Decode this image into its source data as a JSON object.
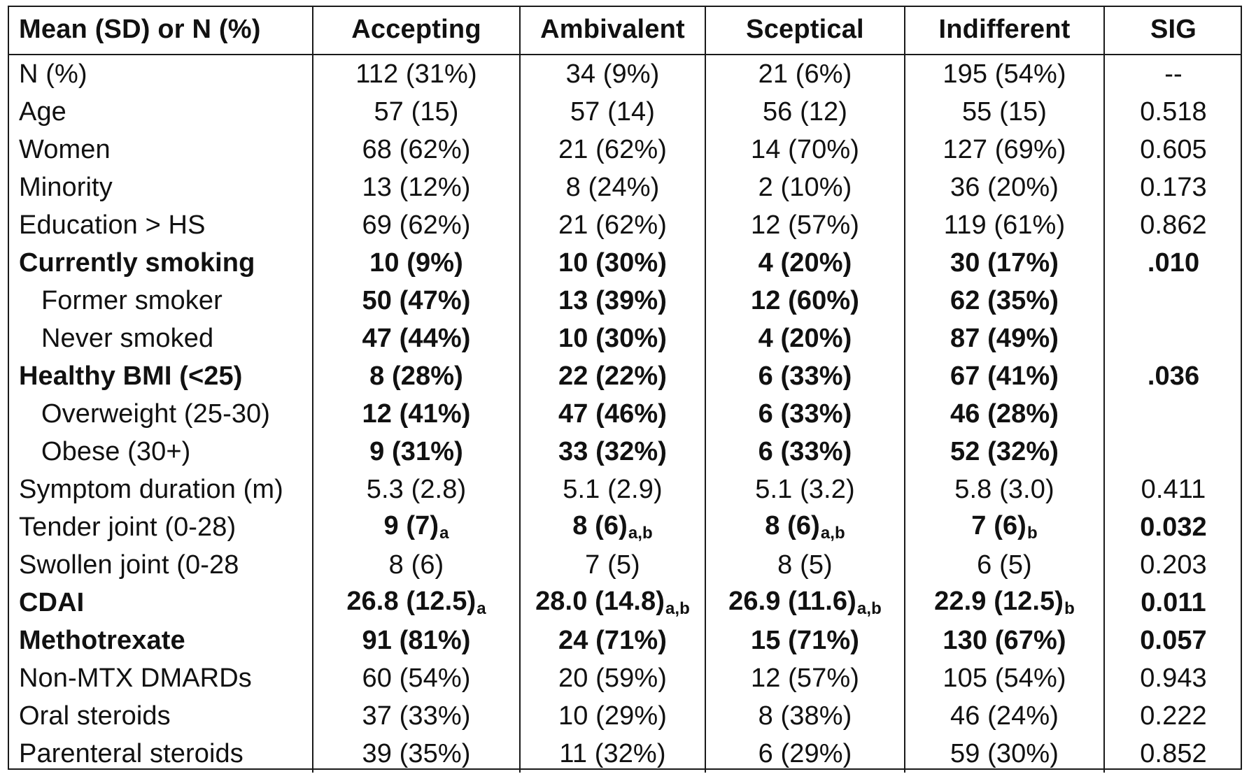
{
  "chart_data": {
    "type": "table",
    "columns": [
      "Mean (SD) or N (%)",
      "Accepting",
      "Ambivalent",
      "Sceptical",
      "Indifferent",
      "SIG"
    ],
    "rows": [
      {
        "label": "N (%)",
        "indent": false,
        "bold_label": false,
        "cells": [
          {
            "text": "112 (31%)",
            "bold": false,
            "sub": ""
          },
          {
            "text": "34 (9%)",
            "bold": false,
            "sub": ""
          },
          {
            "text": "21 (6%)",
            "bold": false,
            "sub": ""
          },
          {
            "text": "195 (54%)",
            "bold": false,
            "sub": ""
          },
          {
            "text": "--",
            "bold": false,
            "sub": ""
          }
        ]
      },
      {
        "label": "Age",
        "indent": false,
        "bold_label": false,
        "cells": [
          {
            "text": "57 (15)",
            "bold": false,
            "sub": ""
          },
          {
            "text": "57 (14)",
            "bold": false,
            "sub": ""
          },
          {
            "text": "56 (12)",
            "bold": false,
            "sub": ""
          },
          {
            "text": "55 (15)",
            "bold": false,
            "sub": ""
          },
          {
            "text": "0.518",
            "bold": false,
            "sub": ""
          }
        ]
      },
      {
        "label": "Women",
        "indent": false,
        "bold_label": false,
        "cells": [
          {
            "text": "68 (62%)",
            "bold": false,
            "sub": ""
          },
          {
            "text": "21 (62%)",
            "bold": false,
            "sub": ""
          },
          {
            "text": "14 (70%)",
            "bold": false,
            "sub": ""
          },
          {
            "text": "127 (69%)",
            "bold": false,
            "sub": ""
          },
          {
            "text": "0.605",
            "bold": false,
            "sub": ""
          }
        ]
      },
      {
        "label": "Minority",
        "indent": false,
        "bold_label": false,
        "cells": [
          {
            "text": "13 (12%)",
            "bold": false,
            "sub": ""
          },
          {
            "text": "8 (24%)",
            "bold": false,
            "sub": ""
          },
          {
            "text": "2 (10%)",
            "bold": false,
            "sub": ""
          },
          {
            "text": "36 (20%)",
            "bold": false,
            "sub": ""
          },
          {
            "text": "0.173",
            "bold": false,
            "sub": ""
          }
        ]
      },
      {
        "label": "Education > HS",
        "indent": false,
        "bold_label": false,
        "cells": [
          {
            "text": "69 (62%)",
            "bold": false,
            "sub": ""
          },
          {
            "text": "21 (62%)",
            "bold": false,
            "sub": ""
          },
          {
            "text": "12 (57%)",
            "bold": false,
            "sub": ""
          },
          {
            "text": "119 (61%)",
            "bold": false,
            "sub": ""
          },
          {
            "text": "0.862",
            "bold": false,
            "sub": ""
          }
        ]
      },
      {
        "label": "Currently smoking",
        "indent": false,
        "bold_label": true,
        "cells": [
          {
            "text": "10 (9%)",
            "bold": true,
            "sub": ""
          },
          {
            "text": "10 (30%)",
            "bold": true,
            "sub": ""
          },
          {
            "text": "4 (20%)",
            "bold": true,
            "sub": ""
          },
          {
            "text": "30 (17%)",
            "bold": true,
            "sub": ""
          },
          {
            "text": ".010",
            "bold": true,
            "sub": ""
          }
        ]
      },
      {
        "label": "Former smoker",
        "indent": true,
        "bold_label": false,
        "cells": [
          {
            "text": "50 (47%)",
            "bold": true,
            "sub": ""
          },
          {
            "text": "13 (39%)",
            "bold": true,
            "sub": ""
          },
          {
            "text": "12 (60%)",
            "bold": true,
            "sub": ""
          },
          {
            "text": "62 (35%)",
            "bold": true,
            "sub": ""
          },
          {
            "text": "",
            "bold": false,
            "sub": ""
          }
        ]
      },
      {
        "label": "Never smoked",
        "indent": true,
        "bold_label": false,
        "cells": [
          {
            "text": "47 (44%)",
            "bold": true,
            "sub": ""
          },
          {
            "text": "10 (30%)",
            "bold": true,
            "sub": ""
          },
          {
            "text": "4 (20%)",
            "bold": true,
            "sub": ""
          },
          {
            "text": "87 (49%)",
            "bold": true,
            "sub": ""
          },
          {
            "text": "",
            "bold": false,
            "sub": ""
          }
        ]
      },
      {
        "label": "Healthy BMI (<25)",
        "indent": false,
        "bold_label": true,
        "cells": [
          {
            "text": "8 (28%)",
            "bold": true,
            "sub": ""
          },
          {
            "text": "22 (22%)",
            "bold": true,
            "sub": ""
          },
          {
            "text": "6 (33%)",
            "bold": true,
            "sub": ""
          },
          {
            "text": "67 (41%)",
            "bold": true,
            "sub": ""
          },
          {
            "text": ".036",
            "bold": true,
            "sub": ""
          }
        ]
      },
      {
        "label": "Overweight (25-30)",
        "indent": true,
        "bold_label": false,
        "cells": [
          {
            "text": "12 (41%)",
            "bold": true,
            "sub": ""
          },
          {
            "text": "47 (46%)",
            "bold": true,
            "sub": ""
          },
          {
            "text": "6 (33%)",
            "bold": true,
            "sub": ""
          },
          {
            "text": "46 (28%)",
            "bold": true,
            "sub": ""
          },
          {
            "text": "",
            "bold": false,
            "sub": ""
          }
        ]
      },
      {
        "label": "Obese (30+)",
        "indent": true,
        "bold_label": false,
        "cells": [
          {
            "text": "9 (31%)",
            "bold": true,
            "sub": ""
          },
          {
            "text": "33 (32%)",
            "bold": true,
            "sub": ""
          },
          {
            "text": "6 (33%)",
            "bold": true,
            "sub": ""
          },
          {
            "text": "52 (32%)",
            "bold": true,
            "sub": ""
          },
          {
            "text": "",
            "bold": false,
            "sub": ""
          }
        ]
      },
      {
        "label": "Symptom duration (m)",
        "indent": false,
        "bold_label": false,
        "cells": [
          {
            "text": "5.3 (2.8)",
            "bold": false,
            "sub": ""
          },
          {
            "text": "5.1 (2.9)",
            "bold": false,
            "sub": ""
          },
          {
            "text": "5.1 (3.2)",
            "bold": false,
            "sub": ""
          },
          {
            "text": "5.8 (3.0)",
            "bold": false,
            "sub": ""
          },
          {
            "text": "0.411",
            "bold": false,
            "sub": ""
          }
        ]
      },
      {
        "label": "Tender joint (0-28)",
        "indent": false,
        "bold_label": false,
        "cells": [
          {
            "text": "9 (7)",
            "bold": true,
            "sub": "a"
          },
          {
            "text": "8 (6)",
            "bold": true,
            "sub": "a,b"
          },
          {
            "text": "8 (6)",
            "bold": true,
            "sub": "a,b"
          },
          {
            "text": "7 (6)",
            "bold": true,
            "sub": "b"
          },
          {
            "text": "0.032",
            "bold": true,
            "sub": ""
          }
        ]
      },
      {
        "label": "Swollen joint (0-28",
        "indent": false,
        "bold_label": false,
        "cells": [
          {
            "text": "8 (6)",
            "bold": false,
            "sub": ""
          },
          {
            "text": "7 (5)",
            "bold": false,
            "sub": ""
          },
          {
            "text": "8 (5)",
            "bold": false,
            "sub": ""
          },
          {
            "text": "6 (5)",
            "bold": false,
            "sub": ""
          },
          {
            "text": "0.203",
            "bold": false,
            "sub": ""
          }
        ]
      },
      {
        "label": "CDAI",
        "indent": false,
        "bold_label": true,
        "cells": [
          {
            "text": "26.8 (12.5)",
            "bold": true,
            "sub": "a"
          },
          {
            "text": "28.0 (14.8)",
            "bold": true,
            "sub": "a,b"
          },
          {
            "text": "26.9 (11.6)",
            "bold": true,
            "sub": "a,b"
          },
          {
            "text": "22.9 (12.5)",
            "bold": true,
            "sub": "b"
          },
          {
            "text": "0.011",
            "bold": true,
            "sub": ""
          }
        ]
      },
      {
        "label": "Methotrexate",
        "indent": false,
        "bold_label": true,
        "cells": [
          {
            "text": "91 (81%)",
            "bold": true,
            "sub": ""
          },
          {
            "text": "24 (71%)",
            "bold": true,
            "sub": ""
          },
          {
            "text": "15 (71%)",
            "bold": true,
            "sub": ""
          },
          {
            "text": "130 (67%)",
            "bold": true,
            "sub": ""
          },
          {
            "text": "0.057",
            "bold": true,
            "sub": ""
          }
        ]
      },
      {
        "label": "Non-MTX DMARDs",
        "indent": false,
        "bold_label": false,
        "cells": [
          {
            "text": "60 (54%)",
            "bold": false,
            "sub": ""
          },
          {
            "text": "20 (59%)",
            "bold": false,
            "sub": ""
          },
          {
            "text": "12 (57%)",
            "bold": false,
            "sub": ""
          },
          {
            "text": "105 (54%)",
            "bold": false,
            "sub": ""
          },
          {
            "text": "0.943",
            "bold": false,
            "sub": ""
          }
        ]
      },
      {
        "label": "Oral steroids",
        "indent": false,
        "bold_label": false,
        "cells": [
          {
            "text": "37 (33%)",
            "bold": false,
            "sub": ""
          },
          {
            "text": "10 (29%)",
            "bold": false,
            "sub": ""
          },
          {
            "text": "8 (38%)",
            "bold": false,
            "sub": ""
          },
          {
            "text": "46 (24%)",
            "bold": false,
            "sub": ""
          },
          {
            "text": "0.222",
            "bold": false,
            "sub": ""
          }
        ]
      },
      {
        "label": "Parenteral steroids",
        "indent": false,
        "bold_label": false,
        "cells": [
          {
            "text": "39 (35%)",
            "bold": false,
            "sub": ""
          },
          {
            "text": "11 (32%)",
            "bold": false,
            "sub": ""
          },
          {
            "text": "6 (29%)",
            "bold": false,
            "sub": ""
          },
          {
            "text": "59 (30%)",
            "bold": false,
            "sub": ""
          },
          {
            "text": "0.852",
            "bold": false,
            "sub": ""
          }
        ]
      }
    ]
  }
}
